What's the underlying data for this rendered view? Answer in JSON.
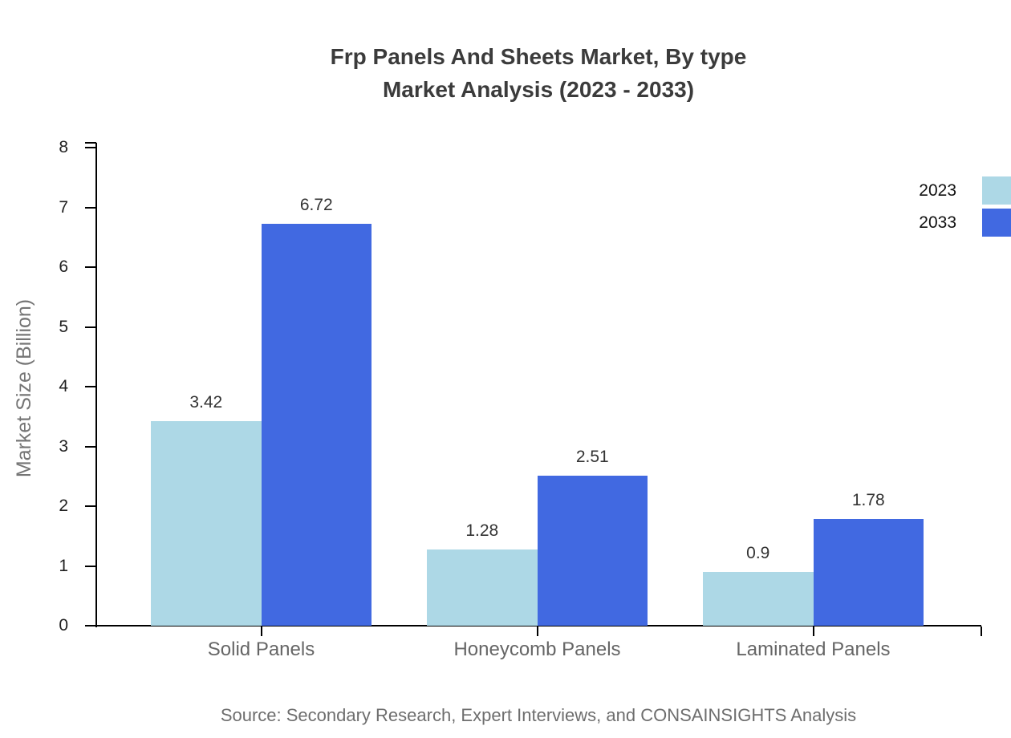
{
  "title": {
    "line1": "Frp Panels And Sheets Market, By type",
    "line2": "Market Analysis (2023 - 2033)"
  },
  "source_text": "Source: Secondary Research, Expert Interviews, and CONSAINSIGHTS Analysis",
  "legend": {
    "position": "top-right",
    "items": [
      {
        "label": "2023",
        "color": "#add8e6"
      },
      {
        "label": "2033",
        "color": "#4169e1"
      }
    ]
  },
  "colors": {
    "series_2023": "#add8e6",
    "series_2033": "#4169e1",
    "axis": "#000000",
    "title_text": "#3b3b3b",
    "category_text": "#666666",
    "value_text": "#333333",
    "source_text": "#6e6e6e"
  },
  "chart_data": {
    "type": "bar",
    "title": "Frp Panels And Sheets Market, By type Market Analysis (2023 - 2033)",
    "categories": [
      "Solid Panels",
      "Honeycomb Panels",
      "Laminated Panels"
    ],
    "series": [
      {
        "name": "2023",
        "color": "#add8e6",
        "values": [
          3.42,
          1.28,
          0.9
        ]
      },
      {
        "name": "2033",
        "color": "#4169e1",
        "values": [
          6.72,
          2.51,
          1.78
        ]
      }
    ],
    "xlabel": "",
    "ylabel": "Market Size (Billion)",
    "ylim": [
      0,
      8
    ],
    "yticks": [
      0,
      1,
      2,
      3,
      4,
      5,
      6,
      7,
      8
    ],
    "grid": false,
    "value_labels": true,
    "legend_position": "right"
  }
}
